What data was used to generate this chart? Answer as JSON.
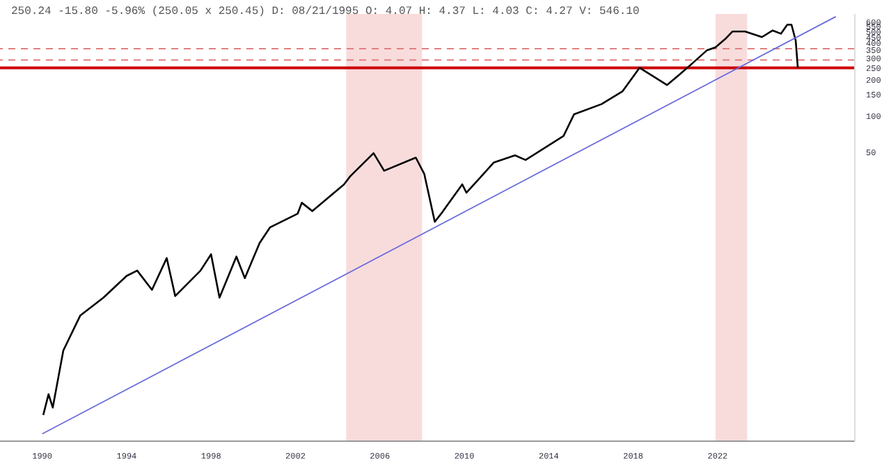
{
  "chart_data": {
    "type": "line",
    "title": "250.24 -15.80 -5.96% (250.05 x 250.45) D: 08/21/1995 O: 4.07 H: 4.37 L: 4.03 C: 4.27 V: 546.10",
    "log": "y",
    "grid": false,
    "legend": false,
    "marker": "none",
    "xlim": [
      1988,
      2028.5
    ],
    "xticks": [
      1990,
      1994,
      1998,
      2002,
      2006,
      2010,
      2014,
      2018,
      2022
    ],
    "ylim": [
      0.2,
      700
    ],
    "yticks": [
      50,
      100,
      150,
      200,
      250,
      300,
      350,
      400,
      450,
      500,
      550,
      600
    ],
    "series": [
      {
        "color": "#000000",
        "x": [
          1990.05,
          1990.3,
          1990.5,
          1991.0,
          1991.8,
          1992.9,
          1994.0,
          1994.5,
          1995.2,
          1995.9,
          1996.3,
          1997.5,
          1998.0,
          1998.4,
          1999.2,
          1999.6,
          2000.3,
          2000.8,
          2002.1,
          2002.3,
          2002.8,
          2004.3,
          2004.6,
          2005.7,
          2006.2,
          2007.7,
          2008.1,
          2008.6,
          2008.9,
          2009.9,
          2010.1,
          2011.4,
          2012.4,
          2012.9,
          2014.7,
          2015.2,
          2016.5,
          2017.5,
          2018.3,
          2019.0,
          2019.6,
          2020.2,
          2020.8,
          2021.5,
          2021.9,
          2022.4,
          2022.7,
          2023.3,
          2024.1,
          2024.6,
          2025.0,
          2025.3,
          2025.5,
          2025.7,
          2025.8
        ],
        "values": [
          0.33,
          0.49,
          0.38,
          1.13,
          2.2,
          3.1,
          4.7,
          5.2,
          3.6,
          6.6,
          3.2,
          5.2,
          7.1,
          3.1,
          6.8,
          4.5,
          8.8,
          11.9,
          15.4,
          19,
          16.2,
          27,
          31.6,
          49,
          35,
          45,
          33,
          13.2,
          15.4,
          27,
          23,
          41,
          47,
          43,
          68,
          103,
          125,
          160,
          250,
          210,
          180,
          220,
          272,
          350,
          370,
          440,
          500,
          500,
          450,
          510,
          480,
          570,
          570,
          420,
          250
        ]
      },
      {
        "type": "line",
        "color": "#6b6bdc",
        "x": [
          1990.0,
          2027.6
        ],
        "values": [
          0.23,
          665
        ]
      }
    ],
    "ref_lines": [
      {
        "axis": "y",
        "value": 360,
        "color": "#e08080",
        "line_style": "dashed"
      },
      {
        "axis": "y",
        "value": 290,
        "color": "#e08080",
        "line_style": "dashed"
      },
      {
        "axis": "y",
        "value": 250,
        "color": "#cc0000",
        "line_style": "solid"
      }
    ],
    "bands": [
      {
        "axis": "x",
        "from": 2004.4,
        "to": 2008.0,
        "color": "#f4c4c4"
      },
      {
        "axis": "x",
        "from": 2021.9,
        "to": 2023.4,
        "color": "#f4c4c4"
      }
    ]
  }
}
